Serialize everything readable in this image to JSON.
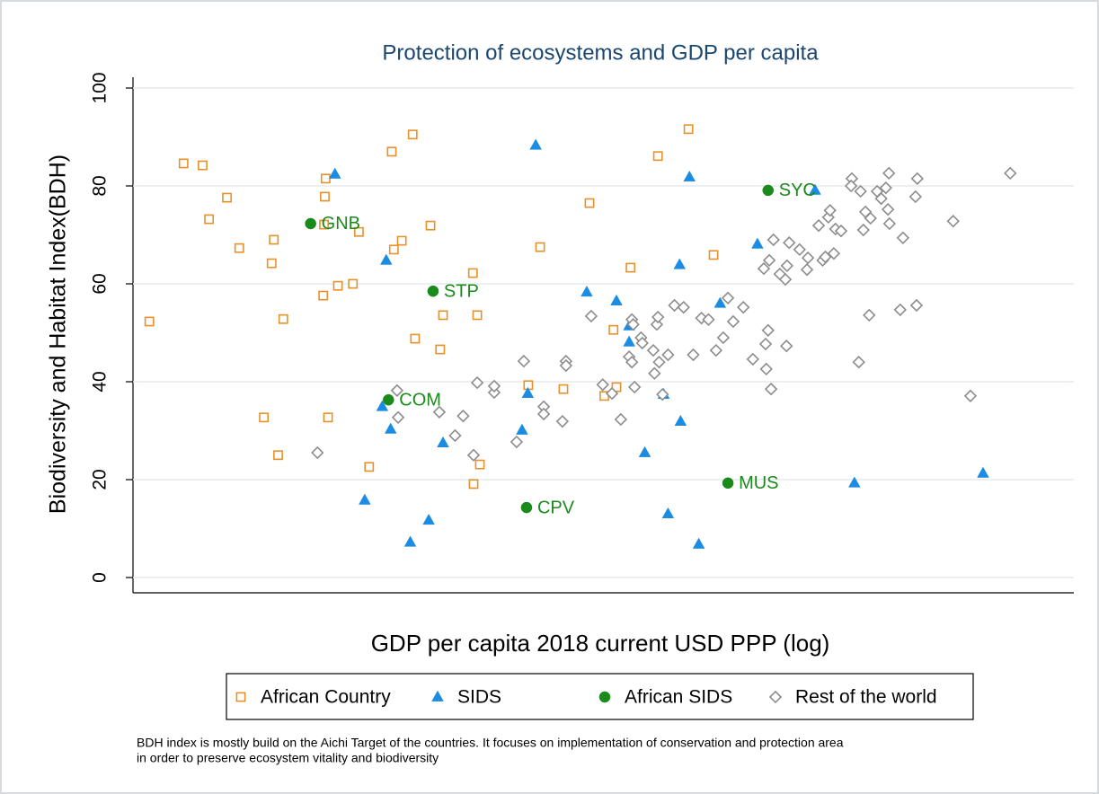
{
  "chart_data": {
    "type": "scatter",
    "title": "Protection of ecosystems and GDP per capita",
    "x_label": "GDP per capita 2018 current USD PPP (log)",
    "y_label": "Biodiversity and Habitat Index(BDH)",
    "xscale": "log",
    "xlim": [
      700,
      168000
    ],
    "ylim": [
      0,
      100
    ],
    "yticks": [
      0,
      20,
      40,
      60,
      80,
      100
    ],
    "grid": true,
    "legend": "bottom",
    "note": [
      "BDH index is mostly build on the Aichi Target of the countries. It focuses on implementation of conservation and protection area",
      "in order to preserve ecosystem vitality and biodiversity"
    ],
    "series": [
      {
        "name": "African Country",
        "color": "#e8912a",
        "marker": "square",
        "hollow": true,
        "x": [
          770,
          940,
          1050,
          1090,
          1210,
          1300,
          1590,
          1570,
          1680,
          1500,
          1630,
          2150,
          2140,
          2130,
          2610,
          2120,
          2310,
          2520,
          2180,
          2770,
          3160,
          3570,
          3200,
          3350,
          3960,
          3620,
          4190,
          4260,
          5070,
          5200,
          5280,
          5090,
          7500,
          7000,
          8590,
          10000,
          11500,
          11700,
          10900,
          12700,
          14900,
          17800,
          20600
        ],
        "values": [
          52.3,
          84.6,
          84.2,
          73.2,
          77.6,
          67.3,
          69.0,
          64.2,
          52.8,
          32.7,
          25.0,
          81.5,
          77.8,
          72.1,
          70.6,
          57.6,
          59.6,
          60.0,
          32.7,
          22.6,
          87.0,
          90.5,
          67.0,
          68.8,
          71.9,
          48.8,
          46.6,
          53.6,
          62.2,
          53.6,
          23.1,
          19.1,
          67.5,
          39.3,
          38.5,
          76.5,
          50.6,
          38.9,
          37.1,
          63.3,
          86.1,
          91.6,
          65.9
        ]
      },
      {
        "name": "SIDS",
        "color": "#1c8ce3",
        "marker": "triangle",
        "hollow": false,
        "x": [
          2270,
          3060,
          2990,
          3140,
          2700,
          3520,
          3920,
          4260,
          7310,
          6980,
          6750,
          9840,
          11700,
          12600,
          12600,
          15400,
          13800,
          15800,
          17000,
          16900,
          17900,
          18900,
          21400,
          26600,
          37200,
          46800,
          99000
        ],
        "values": [
          82.4,
          64.8,
          34.9,
          30.3,
          15.8,
          7.2,
          11.7,
          27.5,
          88.3,
          37.6,
          30.1,
          58.3,
          56.5,
          51.4,
          48.1,
          37.4,
          25.5,
          13.0,
          31.9,
          63.9,
          81.8,
          6.8,
          56.0,
          68.1,
          79.1,
          19.3,
          21.3
        ]
      },
      {
        "name": "African SIDS",
        "color": "#1a8a1a",
        "marker": "circle",
        "hollow": false,
        "x": [
          1970,
          4020,
          3100,
          6930,
          22400,
          28300
        ],
        "values": [
          72.3,
          58.5,
          36.3,
          14.3,
          19.3,
          79.1
        ],
        "labels": [
          "GNB",
          "STP",
          "COM",
          "CPV",
          "MUS",
          "SYC"
        ]
      },
      {
        "name": "Rest of the world",
        "color": "#8c8c8c",
        "marker": "diamond",
        "hollow": true,
        "x": [
          2050,
          3260,
          3280,
          4170,
          4570,
          4790,
          5090,
          5200,
          5740,
          5740,
          6540,
          6820,
          7660,
          7660,
          8540,
          8720,
          8720,
          10100,
          10800,
          11400,
          12000,
          12800,
          12900,
          12600,
          12800,
          13000,
          13500,
          13600,
          14500,
          14600,
          14800,
          14900,
          15000,
          15800,
          15300,
          16400,
          17300,
          18300,
          19200,
          20000,
          20900,
          21800,
          22400,
          23100,
          24500,
          25900,
          27900,
          28000,
          28300,
          28800,
          27600,
          28500,
          29200,
          30300,
          31300,
          31500,
          31600,
          32000,
          34000,
          35500,
          35700,
          38000,
          38900,
          39500,
          40200,
          40600,
          41500,
          41900,
          43300,
          46100,
          45900,
          48500,
          48000,
          49900,
          51400,
          51000,
          49300,
          53400,
          54700,
          56200,
          57200,
          56900,
          57400,
          62100,
          61100,
          66800,
          67500,
          67200,
          83200,
          92000,
          116000
        ],
        "values": [
          25.5,
          38.2,
          32.7,
          33.8,
          29.0,
          33.0,
          25.0,
          39.8,
          37.8,
          39.1,
          27.7,
          44.2,
          34.9,
          33.4,
          31.9,
          44.2,
          43.3,
          53.4,
          39.4,
          37.6,
          32.3,
          52.7,
          51.7,
          45.1,
          44.0,
          38.9,
          49.0,
          47.9,
          46.4,
          41.7,
          51.7,
          53.2,
          44.0,
          45.5,
          37.4,
          55.6,
          55.2,
          45.5,
          53.0,
          52.7,
          46.4,
          49.0,
          57.1,
          52.3,
          55.2,
          44.6,
          47.7,
          42.6,
          50.5,
          38.5,
          63.1,
          64.8,
          69.0,
          62.0,
          60.9,
          47.3,
          63.7,
          68.4,
          67.0,
          62.9,
          65.3,
          71.9,
          64.8,
          65.5,
          73.6,
          75.0,
          66.2,
          71.2,
          70.8,
          81.5,
          80.0,
          78.9,
          44.0,
          74.7,
          73.4,
          53.6,
          71.0,
          78.9,
          77.4,
          79.6,
          82.6,
          75.2,
          72.3,
          69.4,
          54.7,
          77.8,
          81.5,
          55.6,
          72.8,
          37.1,
          82.6
        ]
      }
    ]
  }
}
